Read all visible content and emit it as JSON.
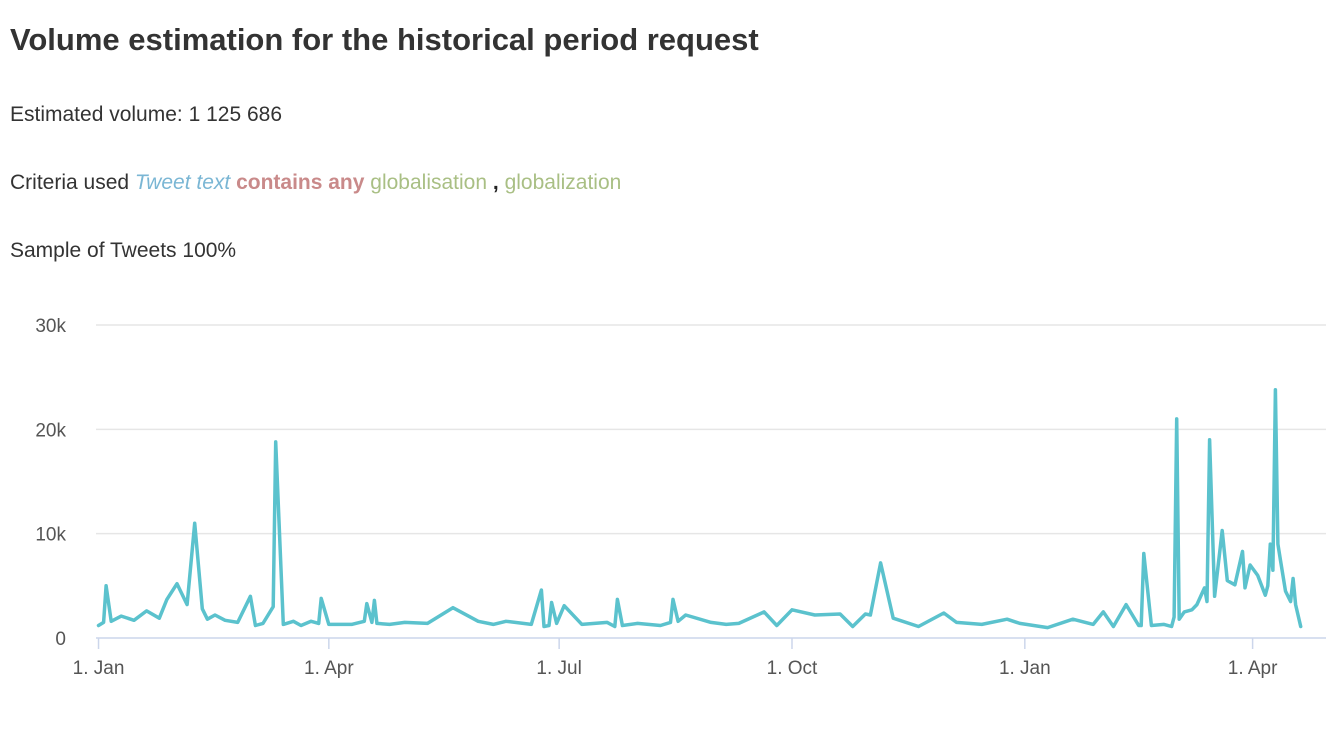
{
  "title": "Volume estimation for the historical period request",
  "estimated_volume": {
    "label": "Estimated volume:",
    "value": "1 125 686"
  },
  "criteria": {
    "label": "Criteria used",
    "field": "Tweet text",
    "operator": "contains any",
    "terms": [
      "globalisation",
      "globalization"
    ],
    "separator": ",",
    "colors": {
      "field": "#7ab6d4",
      "operator": "#c98a8a",
      "term": "#a9bf84"
    }
  },
  "sample": {
    "label": "Sample of Tweets",
    "value": "100%"
  },
  "chart_data": {
    "type": "line",
    "color": "#5bc2cd",
    "grid": true,
    "ylim": [
      0,
      30000
    ],
    "y_ticks": [
      {
        "value": 0,
        "label": "0"
      },
      {
        "value": 10000,
        "label": "10k"
      },
      {
        "value": 20000,
        "label": "20k"
      },
      {
        "value": 30000,
        "label": "30k"
      }
    ],
    "xlim": [
      "2019-12-31",
      "2021-04-30"
    ],
    "x_ticks": [
      {
        "date": "2020-01-01",
        "label": "1. Jan"
      },
      {
        "date": "2020-04-01",
        "label": "1. Apr"
      },
      {
        "date": "2020-07-01",
        "label": "1. Jul"
      },
      {
        "date": "2020-10-01",
        "label": "1. Oct"
      },
      {
        "date": "2021-01-01",
        "label": "1. Jan"
      },
      {
        "date": "2021-04-01",
        "label": "1. Apr"
      }
    ],
    "series": [
      {
        "x": [
          "2020-01-01",
          "2020-01-03",
          "2020-01-04",
          "2020-01-06",
          "2020-01-10",
          "2020-01-15",
          "2020-01-20",
          "2020-01-25",
          "2020-01-28",
          "2020-02-01",
          "2020-02-05",
          "2020-02-08",
          "2020-02-10",
          "2020-02-11",
          "2020-02-13",
          "2020-02-16",
          "2020-02-20",
          "2020-02-25",
          "2020-03-01",
          "2020-03-03",
          "2020-03-06",
          "2020-03-10",
          "2020-03-11",
          "2020-03-14",
          "2020-03-18",
          "2020-03-21",
          "2020-03-25",
          "2020-03-28",
          "2020-03-29",
          "2020-04-01",
          "2020-04-10",
          "2020-04-15",
          "2020-04-16",
          "2020-04-18",
          "2020-04-19",
          "2020-04-20",
          "2020-04-25",
          "2020-05-01",
          "2020-05-10",
          "2020-05-20",
          "2020-05-30",
          "2020-06-05",
          "2020-06-10",
          "2020-06-20",
          "2020-06-24",
          "2020-06-25",
          "2020-06-27",
          "2020-06-28",
          "2020-06-30",
          "2020-07-03",
          "2020-07-10",
          "2020-07-20",
          "2020-07-23",
          "2020-07-24",
          "2020-07-26",
          "2020-08-01",
          "2020-08-10",
          "2020-08-14",
          "2020-08-15",
          "2020-08-17",
          "2020-08-20",
          "2020-08-30",
          "2020-09-05",
          "2020-09-10",
          "2020-09-20",
          "2020-09-25",
          "2020-10-01",
          "2020-10-10",
          "2020-10-20",
          "2020-10-25",
          "2020-10-30",
          "2020-11-01",
          "2020-11-05",
          "2020-11-10",
          "2020-11-20",
          "2020-11-30",
          "2020-12-05",
          "2020-12-15",
          "2020-12-25",
          "2020-12-30",
          "2021-01-10",
          "2021-01-20",
          "2021-01-28",
          "2021-02-01",
          "2021-02-05",
          "2021-02-10",
          "2021-02-15",
          "2021-02-16",
          "2021-02-17",
          "2021-02-20",
          "2021-02-25",
          "2021-02-28",
          "2021-03-01",
          "2021-03-02",
          "2021-03-03",
          "2021-03-05",
          "2021-03-08",
          "2021-03-10",
          "2021-03-13",
          "2021-03-14",
          "2021-03-15",
          "2021-03-17",
          "2021-03-20",
          "2021-03-22",
          "2021-03-25",
          "2021-03-28",
          "2021-03-29",
          "2021-03-31",
          "2021-04-03",
          "2021-04-06",
          "2021-04-07",
          "2021-04-08",
          "2021-04-09",
          "2021-04-10",
          "2021-04-11",
          "2021-04-12",
          "2021-04-14",
          "2021-04-16",
          "2021-04-17",
          "2021-04-18",
          "2021-04-20"
        ],
        "y": [
          1200,
          1500,
          5000,
          1600,
          2100,
          1700,
          2600,
          1900,
          3700,
          5200,
          3200,
          11000,
          5500,
          2800,
          1800,
          2200,
          1700,
          1500,
          4000,
          1200,
          1400,
          3000,
          18800,
          1300,
          1600,
          1200,
          1600,
          1400,
          3800,
          1300,
          1300,
          1600,
          3300,
          1500,
          3600,
          1400,
          1300,
          1500,
          1400,
          2900,
          1600,
          1300,
          1600,
          1300,
          4600,
          1100,
          1200,
          3400,
          1400,
          3100,
          1300,
          1500,
          1100,
          3700,
          1200,
          1400,
          1200,
          1500,
          3700,
          1600,
          2200,
          1500,
          1300,
          1400,
          2500,
          1200,
          2700,
          2200,
          2300,
          1100,
          2300,
          2200,
          7200,
          1900,
          1100,
          2400,
          1500,
          1300,
          1800,
          1400,
          1000,
          1800,
          1300,
          2500,
          1100,
          3200,
          1200,
          1200,
          8100,
          1200,
          1300,
          1100,
          2000,
          21000,
          1800,
          2500,
          2700,
          3200,
          4800,
          3500,
          19000,
          4000,
          10300,
          5500,
          5100,
          8300,
          4800,
          7000,
          6000,
          4100,
          5000,
          9000,
          6500,
          23800,
          9000,
          7500,
          4500,
          3500,
          5700,
          3200,
          1100
        ]
      }
    ]
  }
}
